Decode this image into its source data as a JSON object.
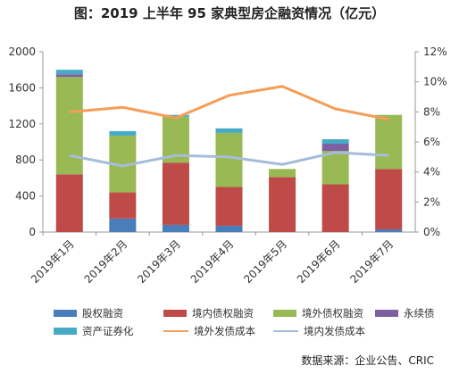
{
  "chart_data": {
    "type": "bar",
    "title": "图：2019 上半年 95 家典型房企融资情况（亿元）",
    "categories": [
      "2019年1月",
      "2019年2月",
      "2019年3月",
      "2019年4月",
      "2019年5月",
      "2019年6月",
      "2019年7月"
    ],
    "series": [
      {
        "name": "股权融资",
        "type": "bar",
        "color": "#4a7ebb",
        "values": [
          0,
          150,
          80,
          70,
          0,
          0,
          30
        ]
      },
      {
        "name": "境内债权融资",
        "type": "bar",
        "color": "#be4b48",
        "values": [
          640,
          290,
          690,
          430,
          610,
          530,
          670
        ]
      },
      {
        "name": "境外债权融资",
        "type": "bar",
        "color": "#98b954",
        "values": [
          1080,
          630,
          510,
          600,
          90,
          370,
          600
        ]
      },
      {
        "name": "永续债",
        "type": "bar",
        "color": "#7d60a0",
        "values": [
          30,
          0,
          0,
          0,
          0,
          80,
          0
        ]
      },
      {
        "name": "资产证券化",
        "type": "bar",
        "color": "#46aac5",
        "values": [
          50,
          50,
          20,
          50,
          0,
          50,
          0
        ]
      },
      {
        "name": "境外发债成本",
        "type": "line",
        "axis": "right",
        "color": "#f59d56",
        "values": [
          8.0,
          8.3,
          7.6,
          9.1,
          9.7,
          8.2,
          7.5
        ]
      },
      {
        "name": "境内发债成本",
        "type": "line",
        "axis": "right",
        "color": "#a6bcd9",
        "values": [
          5.1,
          4.4,
          5.1,
          5.0,
          4.5,
          5.3,
          5.1
        ]
      }
    ],
    "y_left": {
      "ticks": [
        "0",
        "400",
        "800",
        "1200",
        "1600",
        "2000"
      ],
      "range": [
        0,
        2000
      ]
    },
    "y_right": {
      "ticks": [
        "0%",
        "2%",
        "4%",
        "6%",
        "8%",
        "10%",
        "12%"
      ],
      "range": [
        0,
        12
      ]
    },
    "grid": false,
    "legend": "bottom",
    "source": "数据来源：企业公告、CRIC"
  }
}
